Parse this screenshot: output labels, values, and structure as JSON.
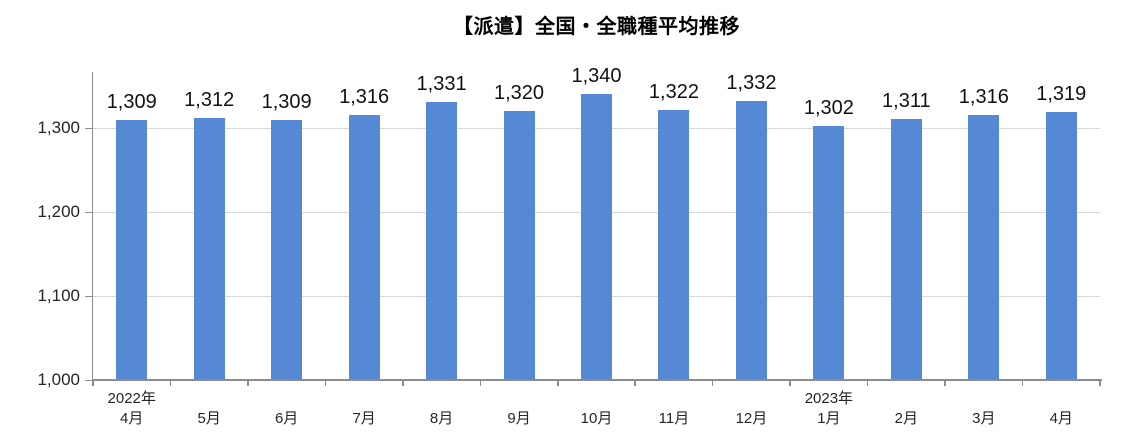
{
  "title": "【派遣】全国・全職種平均推移",
  "chart_data": {
    "type": "bar",
    "title": "【派遣】全国・全職種平均推移",
    "categories": [
      "4月",
      "5月",
      "6月",
      "7月",
      "8月",
      "9月",
      "10月",
      "11月",
      "12月",
      "1月",
      "2月",
      "3月",
      "4月"
    ],
    "year_markers": [
      {
        "index": 0,
        "label": "2022年"
      },
      {
        "index": 9,
        "label": "2023年"
      }
    ],
    "values": [
      1309,
      1312,
      1309,
      1316,
      1331,
      1320,
      1340,
      1322,
      1332,
      1302,
      1311,
      1316,
      1319
    ],
    "value_labels": [
      "1,309",
      "1,312",
      "1,309",
      "1,316",
      "1,331",
      "1,320",
      "1,340",
      "1,322",
      "1,332",
      "1,302",
      "1,311",
      "1,316",
      "1,319"
    ],
    "xlabel": "",
    "ylabel": "",
    "ylim": [
      1000,
      1367
    ],
    "y_ticks": [
      1000,
      1100,
      1200,
      1300
    ],
    "y_tick_labels": [
      "1,000",
      "1,100",
      "1,200",
      "1,300"
    ],
    "grid": true,
    "legend": "none",
    "bar_color": "#5589D6",
    "gridline_color": "#D9D9D9",
    "axis_color": "#8C8C8C",
    "text_color": "#262626"
  }
}
